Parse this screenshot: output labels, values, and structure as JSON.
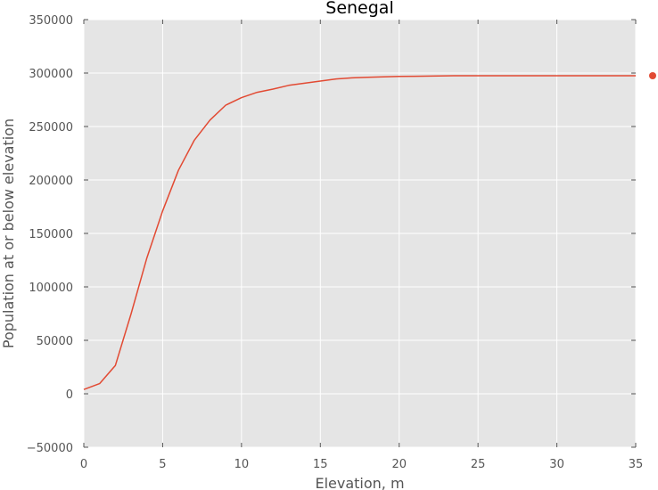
{
  "chart_data": {
    "type": "line",
    "title": "Senegal",
    "xlabel": "Elevation, m",
    "ylabel": "Population at or below elevation",
    "xlim": [
      0,
      35
    ],
    "ylim": [
      -50000,
      350000
    ],
    "xticks": [
      0,
      5,
      10,
      15,
      20,
      25,
      30,
      35
    ],
    "xtick_labels": [
      "0",
      "5",
      "10",
      "15",
      "20",
      "25",
      "30",
      "35"
    ],
    "yticks": [
      -50000,
      0,
      50000,
      100000,
      150000,
      200000,
      250000,
      300000,
      350000
    ],
    "ytick_labels": [
      "−50000",
      "0",
      "50000",
      "100000",
      "150000",
      "200000",
      "250000",
      "300000",
      "350000"
    ],
    "grid": true,
    "background_color": "#e5e5e5",
    "grid_color": "#ffffff",
    "series": [
      {
        "color": "#e24a33",
        "x": [
          0,
          1,
          2,
          3,
          4,
          5,
          6,
          7,
          8,
          9,
          10,
          11,
          12,
          13,
          14,
          15,
          16,
          17,
          18,
          19,
          20,
          21,
          22,
          23,
          24,
          25,
          26,
          27,
          28,
          29,
          30,
          31,
          32,
          33,
          34,
          35
        ],
        "y": [
          4000,
          9500,
          26500,
          75000,
          127000,
          171000,
          209000,
          237000,
          256000,
          270000,
          277000,
          282000,
          285000,
          288500,
          290500,
          292500,
          294500,
          295500,
          296000,
          296500,
          296800,
          297000,
          297200,
          297400,
          297500,
          297500,
          297500,
          297500,
          297500,
          297500,
          297500,
          297500,
          297500,
          297500,
          297500,
          297500
        ]
      }
    ],
    "marker_point": {
      "color": "#e24a33",
      "y": 297500,
      "placement": "right of plot area"
    }
  }
}
